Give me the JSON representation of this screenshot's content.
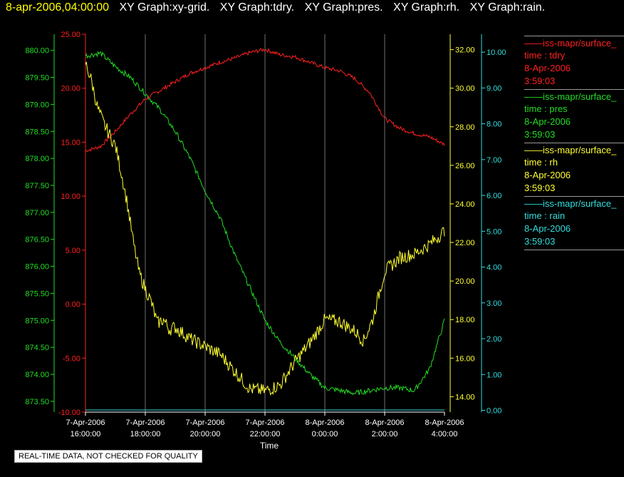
{
  "title_bar": {
    "timestamp": "8-apr-2006,04:00:00",
    "graphs": [
      "XY Graph:xy-grid.",
      "XY Graph:tdry.",
      "XY Graph:pres.",
      "XY Graph:rh.",
      "XY Graph:rain."
    ]
  },
  "notice": "REAL-TIME DATA, NOT CHECKED FOR QUALITY",
  "colors": {
    "tdry": "#ff2020",
    "pres": "#22dd22",
    "rh": "#ffff33",
    "rain": "#33dddd",
    "grid": "#bbbbbb"
  },
  "legend": [
    {
      "name": "iss-mapr/surface_",
      "label": "time : tdry",
      "date": "8-Apr-2006",
      "time": "3:59:03",
      "color": "#ff2020"
    },
    {
      "name": "iss-mapr/surface_",
      "label": "time : pres",
      "date": "8-Apr-2006",
      "time": "3:59:03",
      "color": "#22dd22"
    },
    {
      "name": "iss-mapr/surface_",
      "label": "time : rh",
      "date": "8-Apr-2006",
      "time": "3:59:03",
      "color": "#ffff33"
    },
    {
      "name": "iss-mapr/surface_",
      "label": "time : rain",
      "date": "8-Apr-2006",
      "time": "3:59:03",
      "color": "#33dddd"
    }
  ],
  "chart_data": {
    "type": "line",
    "xlabel": "Time",
    "x_ticks": [
      {
        "d": "7-Apr-2006",
        "t": "16:00:00"
      },
      {
        "d": "7-Apr-2006",
        "t": "18:00:00"
      },
      {
        "d": "7-Apr-2006",
        "t": "20:00:00"
      },
      {
        "d": "7-Apr-2006",
        "t": "22:00:00"
      },
      {
        "d": "8-Apr-2006",
        "t": "0:00:00"
      },
      {
        "d": "8-Apr-2006",
        "t": "2:00:00"
      },
      {
        "d": "8-Apr-2006",
        "t": "4:00:00"
      }
    ],
    "x_hours": [
      0,
      2,
      4,
      6,
      8,
      10,
      12
    ],
    "grid": true,
    "axes": {
      "pres": {
        "ylim": [
          873.3,
          880.3
        ],
        "ticks": [
          "873.50",
          "874.00",
          "874.50",
          "875.00",
          "875.50",
          "876.00",
          "876.50",
          "877.00",
          "877.50",
          "878.00",
          "878.50",
          "879.00",
          "879.50",
          "880.00"
        ],
        "color": "#22dd22"
      },
      "tdry": {
        "ylim": [
          -10,
          25
        ],
        "ticks": [
          "-10.00",
          "-5.00",
          "0.00",
          "5.00",
          "10.00",
          "15.00",
          "20.00",
          "25.00"
        ],
        "color": "#ff2020"
      },
      "rh": {
        "ylim": [
          13.2,
          32.8
        ],
        "ticks": [
          "14.00",
          "16.00",
          "18.00",
          "20.00",
          "22.00",
          "24.00",
          "26.00",
          "28.00",
          "30.00",
          "32.00"
        ],
        "color": "#ffff33"
      },
      "rain": {
        "ylim": [
          -0.05,
          10.5
        ],
        "ticks": [
          "0.00",
          "1.00",
          "2.00",
          "3.00",
          "4.00",
          "5.00",
          "6.00",
          "7.00",
          "8.00",
          "9.00",
          "10.00"
        ],
        "color": "#33dddd"
      }
    },
    "series": [
      {
        "key": "tdry",
        "x": [
          0,
          0.5,
          1,
          1.5,
          2,
          2.5,
          3,
          3.5,
          4,
          4.5,
          5,
          5.5,
          6,
          6.5,
          7,
          7.5,
          8,
          8.5,
          9,
          9.5,
          10,
          10.5,
          11,
          11.5,
          12
        ],
        "y": [
          14.2,
          14.6,
          16.0,
          17.6,
          19.0,
          19.8,
          20.6,
          21.4,
          21.9,
          22.4,
          22.8,
          23.3,
          23.6,
          23.1,
          22.9,
          22.4,
          21.9,
          21.6,
          20.9,
          19.6,
          17.2,
          16.3,
          15.8,
          15.5,
          14.8
        ]
      },
      {
        "key": "pres",
        "x": [
          0,
          0.5,
          1,
          1.5,
          2,
          2.5,
          3,
          3.5,
          4,
          4.5,
          5,
          5.5,
          6,
          6.5,
          7,
          7.5,
          8,
          8.5,
          9,
          9.5,
          10,
          10.5,
          11,
          11.5,
          12
        ],
        "y": [
          879.9,
          879.95,
          879.7,
          879.5,
          879.2,
          878.9,
          878.5,
          878.0,
          877.4,
          876.9,
          876.2,
          875.6,
          875.0,
          874.6,
          874.3,
          874.0,
          873.75,
          873.7,
          873.65,
          873.7,
          873.75,
          873.75,
          873.7,
          874.1,
          875.0
        ]
      },
      {
        "key": "rh",
        "x": [
          0,
          0.2,
          0.4,
          0.6,
          0.8,
          1,
          1.2,
          1.4,
          1.6,
          1.8,
          2,
          2.2,
          2.4,
          2.6,
          2.8,
          3,
          3.5,
          4,
          4.5,
          5,
          5.5,
          6,
          6.5,
          7,
          7.5,
          8,
          8.5,
          9,
          9.3,
          9.6,
          10,
          10.5,
          11,
          11.5,
          12
        ],
        "y": [
          31.3,
          30.4,
          29.0,
          28.2,
          27.6,
          27.0,
          25.6,
          24.0,
          22.0,
          20.4,
          19.6,
          18.9,
          17.8,
          18.0,
          17.5,
          17.6,
          17.0,
          16.6,
          16.2,
          15.3,
          14.4,
          14.3,
          14.6,
          15.8,
          16.8,
          18.0,
          17.9,
          17.4,
          16.9,
          18.0,
          20.5,
          21.2,
          21.4,
          21.9,
          22.6
        ]
      },
      {
        "key": "rain",
        "x": [
          0,
          12
        ],
        "y": [
          0.01,
          0.01
        ]
      }
    ]
  }
}
